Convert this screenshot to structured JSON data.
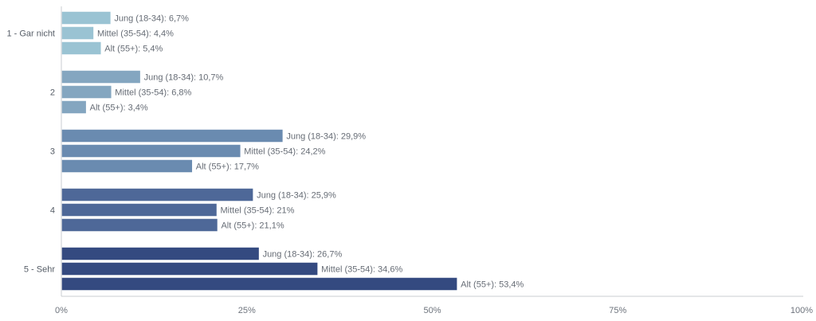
{
  "chart_data": {
    "type": "bar",
    "orientation": "horizontal",
    "categories": [
      "1 - Gar nicht",
      "2",
      "3",
      "4",
      "5 - Sehr"
    ],
    "series": [
      {
        "name": "Jung (18-34)",
        "values": [
          6.7,
          10.7,
          29.9,
          25.9,
          26.7
        ],
        "labels": [
          "6,7%",
          "10,7%",
          "29,9%",
          "25,9%",
          "26,7%"
        ]
      },
      {
        "name": "Mittel (35-54)",
        "values": [
          4.4,
          6.8,
          24.2,
          21,
          34.6
        ],
        "labels": [
          "4,4%",
          "6,8%",
          "24,2%",
          "21%",
          "34,6%"
        ]
      },
      {
        "name": "Alt (55+)",
        "values": [
          5.4,
          3.4,
          17.7,
          21.1,
          53.4
        ],
        "labels": [
          "5,4%",
          "3,4%",
          "17,7%",
          "21,1%",
          "53,4%"
        ]
      }
    ],
    "category_colors": [
      "#9ac3d3",
      "#84a6c0",
      "#6a8bb0",
      "#4e6898",
      "#344a80"
    ],
    "xlim": [
      0,
      100
    ],
    "xticks": [
      0,
      25,
      50,
      75,
      100
    ],
    "xtick_labels": [
      "0%",
      "25%",
      "50%",
      "75%",
      "100%"
    ],
    "grid": false,
    "legend": "none",
    "title": "",
    "xlabel": "",
    "ylabel": ""
  }
}
